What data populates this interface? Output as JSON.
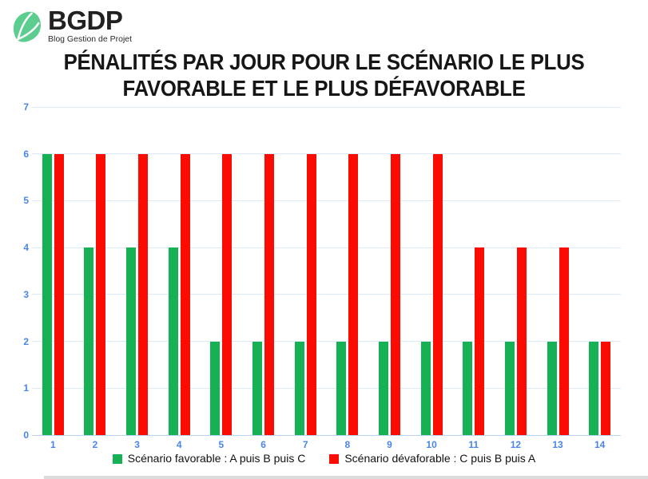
{
  "logo": {
    "name": "BGDP",
    "tagline": "Blog Gestion de Projet",
    "icon_color": "#5bcd8e"
  },
  "title": {
    "line1": "PÉNALITÉS PAR JOUR POUR LE SCÉNARIO LE PLUS",
    "line2": "FAVORABLE ET LE PLUS DÉFAVORABLE"
  },
  "chart_data": {
    "type": "bar",
    "title": "Pénalités par jour pour le scénario le plus favorable et le plus défavorable",
    "categories": [
      "1",
      "2",
      "3",
      "4",
      "5",
      "6",
      "7",
      "8",
      "9",
      "10",
      "11",
      "12",
      "13",
      "14"
    ],
    "series": [
      {
        "name": "Scénario favorable : A puis B puis C",
        "color": "#17b155",
        "values": [
          6,
          4,
          4,
          4,
          2,
          2,
          2,
          2,
          2,
          2,
          2,
          2,
          2,
          2
        ]
      },
      {
        "name": "Scénario dévaforable : C puis B puis A",
        "color": "#fb0c03",
        "values": [
          6,
          6,
          6,
          6,
          6,
          6,
          6,
          6,
          6,
          6,
          4,
          4,
          4,
          2
        ]
      }
    ],
    "ylim": [
      0,
      7
    ],
    "yticks": [
      0,
      1,
      2,
      3,
      4,
      5,
      6,
      7
    ],
    "grid": true,
    "legend_position": "bottom",
    "axis_label_color": "#4a86e8",
    "gridline_color": "#dce9f7"
  }
}
